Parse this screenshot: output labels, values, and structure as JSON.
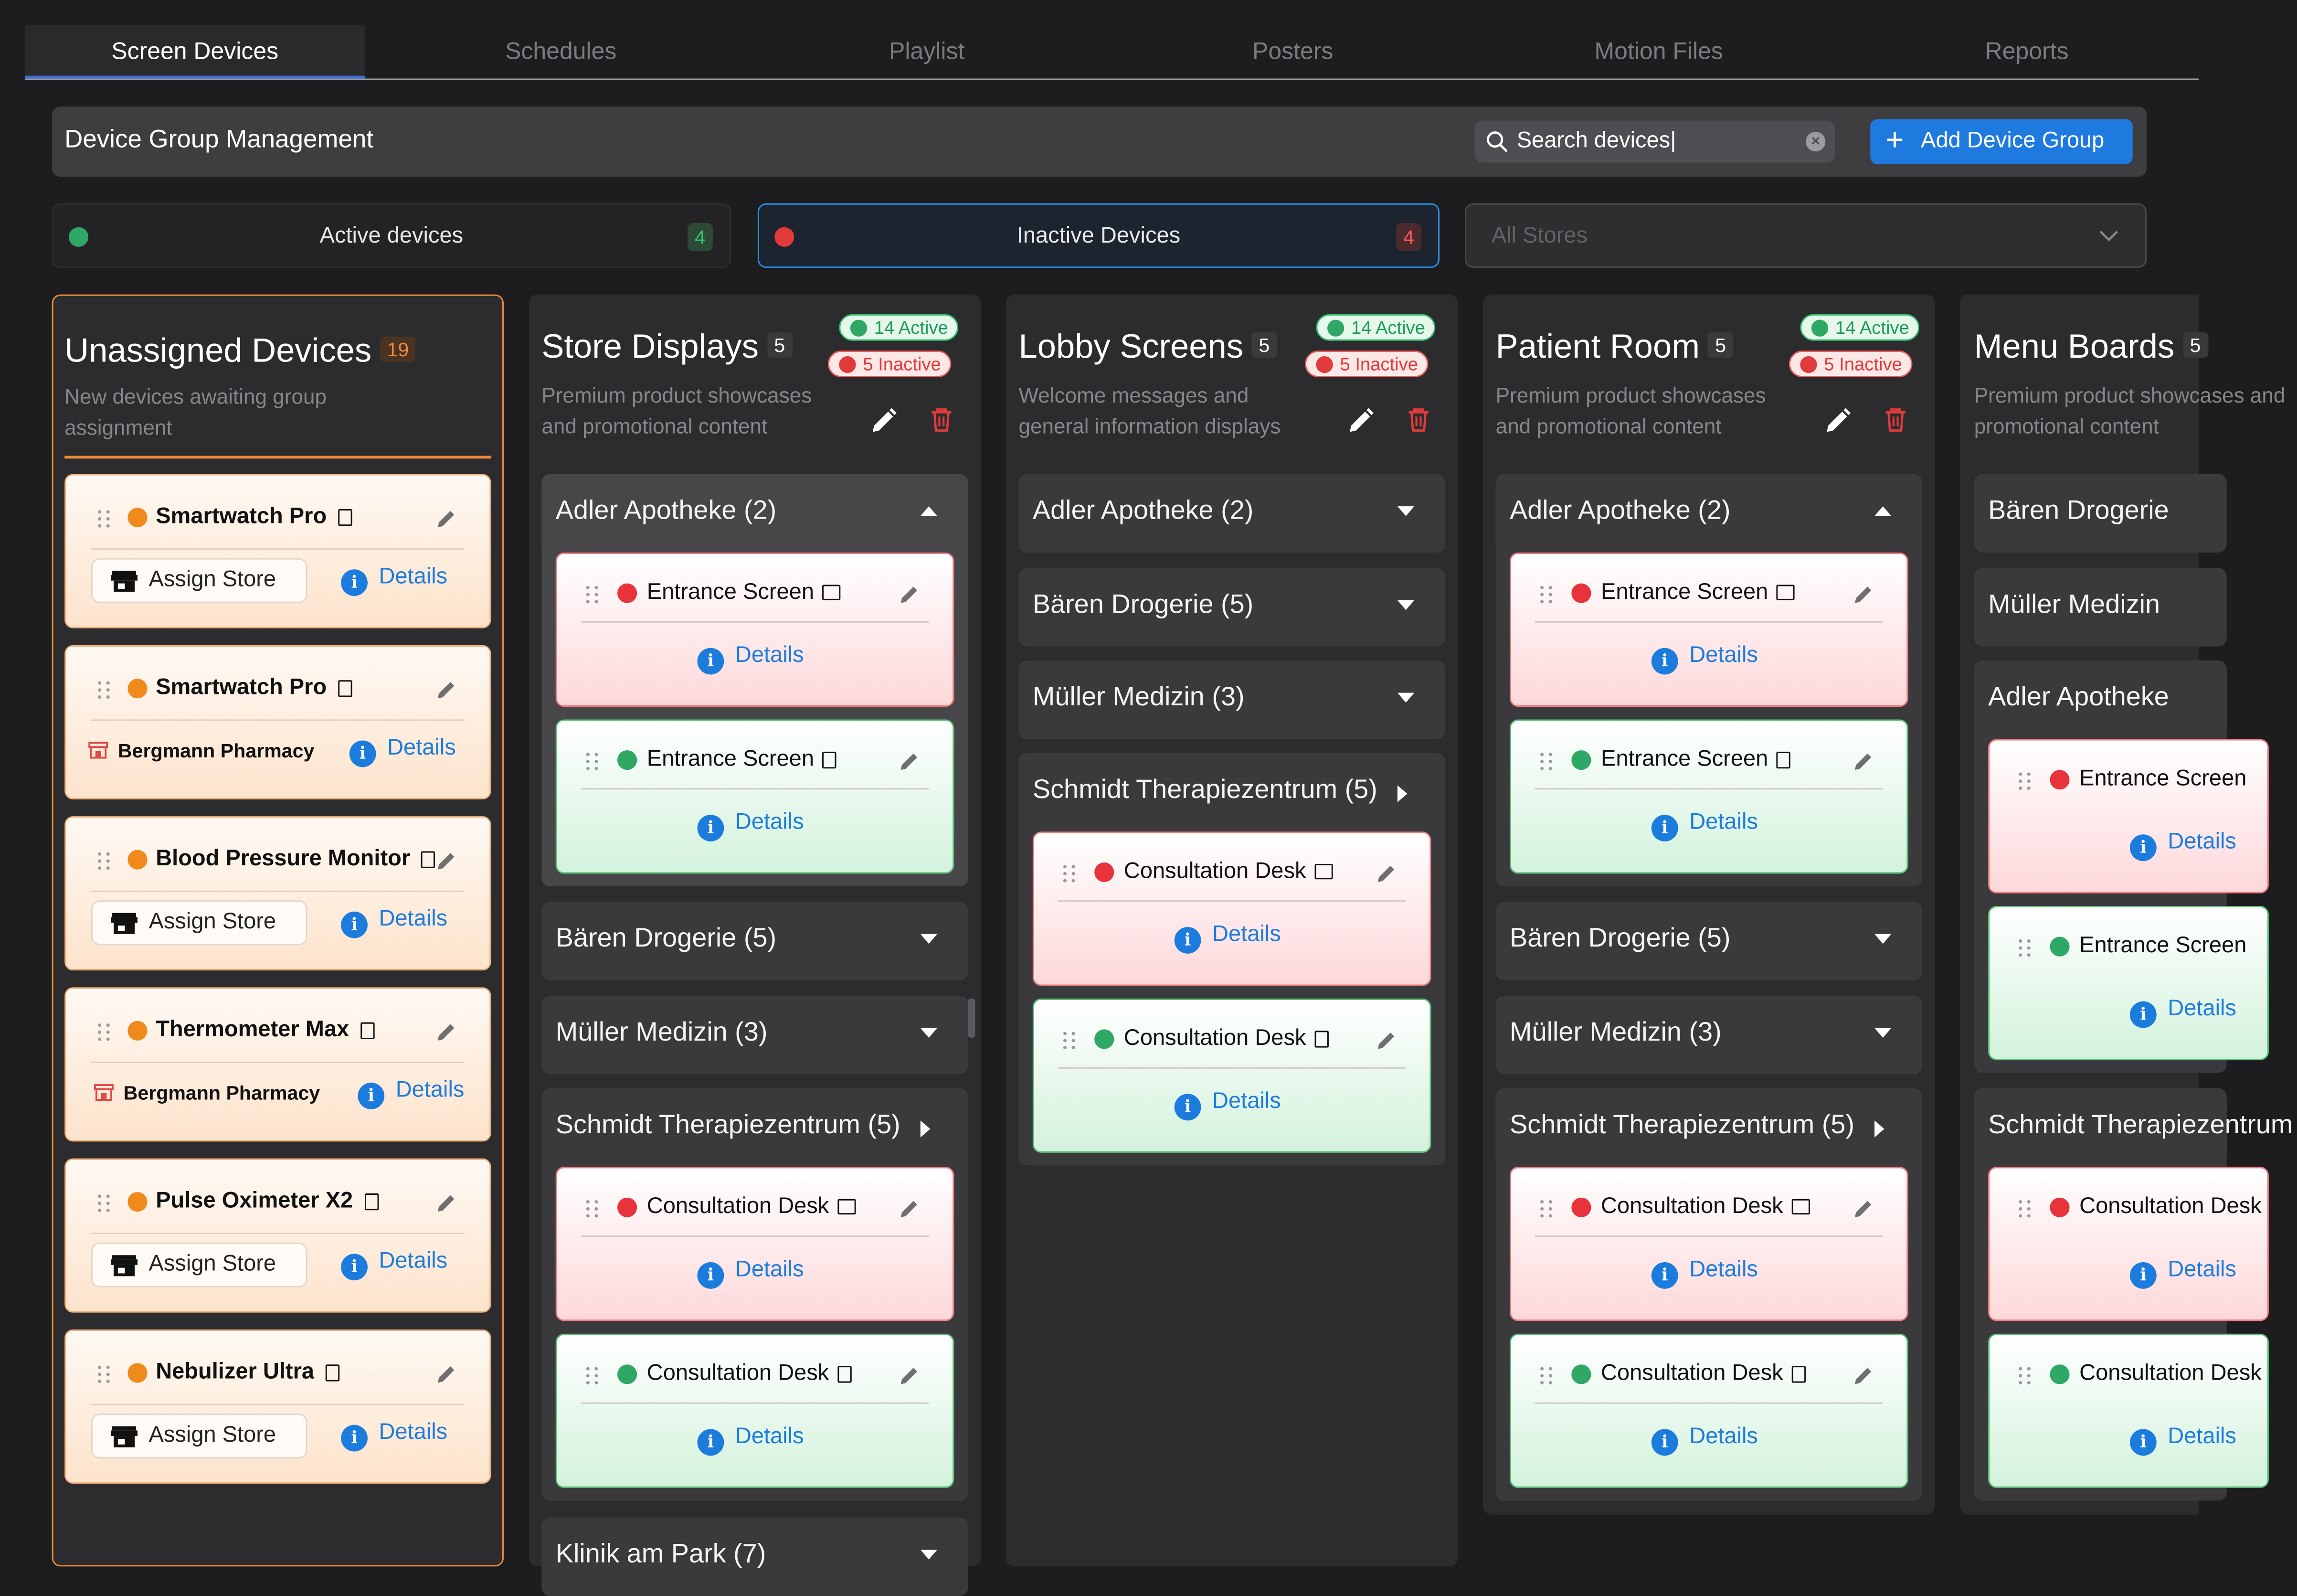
{
  "tabs": [
    "Screen Devices",
    "Schedules",
    "Playlist",
    "Posters",
    "Motion Files",
    "Reports"
  ],
  "header": {
    "title": "Device Group Management",
    "search_value": "Search devices|",
    "add_label": "Add Device Group"
  },
  "filters": {
    "active": {
      "label": "Active devices",
      "count": "4"
    },
    "inactive": {
      "label": "Inactive Devices",
      "count": "4"
    },
    "stores_placeholder": "All Stores"
  },
  "colors": {
    "accent": "#1f7ae0",
    "active": "#2fa865",
    "inactive": "#e03a3a",
    "unassigned": "#f08a1c"
  },
  "unassigned": {
    "title": "Unassigned Devices",
    "count": "19",
    "desc": "New devices awaiting group assignment",
    "assign_label": "Assign Store",
    "details_label": "Details",
    "devices": [
      {
        "name": "Smartwatch Pro",
        "store": ""
      },
      {
        "name": "Smartwatch Pro",
        "store": "Bergmann Pharmacy"
      },
      {
        "name": "Blood Pressure Monitor",
        "store": ""
      },
      {
        "name": "Thermometer Max",
        "store": "Bergmann Pharmacy"
      },
      {
        "name": "Pulse Oximeter X2",
        "store": ""
      },
      {
        "name": "Nebulizer Ultra",
        "store": ""
      }
    ]
  },
  "columns": [
    {
      "title": "Store Displays",
      "count": "5",
      "active": "14 Active",
      "inactive": "5 Inactive",
      "desc": "Premium product showcases and promotional content",
      "groups": [
        "Adler Apotheke (2)",
        "Bären Drogerie (5)",
        "Müller Medizin (3)",
        "Schmidt Therapiezentrum (5)",
        "Klinik am Park (7)"
      ],
      "open_group_devices": [
        "Entrance Screen",
        "Entrance Screen"
      ],
      "schmidt_devices": [
        "Consultation Desk",
        "Consultation Desk"
      ]
    },
    {
      "title": "Lobby Screens",
      "count": "5",
      "active": "14 Active",
      "inactive": "5 Inactive",
      "desc": "Welcome messages and general information displays",
      "groups": [
        "Adler Apotheke (2)",
        "Bären Drogerie (5)",
        "Müller Medizin (3)",
        "Schmidt Therapiezentrum (5)"
      ],
      "schmidt_devices": [
        "Consultation Desk",
        "Consultation Desk"
      ]
    },
    {
      "title": "Patient Room",
      "count": "5",
      "active": "14 Active",
      "inactive": "5 Inactive",
      "desc": "Premium product showcases and promotional content",
      "groups": [
        "Adler Apotheke (2)",
        "Bären Drogerie (5)",
        "Müller Medizin (3)",
        "Schmidt Therapiezentrum (5)"
      ],
      "open_group_devices": [
        "Entrance Screen",
        "Entrance Screen"
      ],
      "schmidt_devices": [
        "Consultation Desk",
        "Consultation Desk"
      ]
    },
    {
      "title": "Menu Boards",
      "count": "5",
      "desc": "Premium product showcases and promotional content",
      "groups": [
        "Bären Drogerie",
        "Müller Medizin",
        "Adler Apotheke",
        "Schmidt Therapiezentrum"
      ],
      "adler_devices": [
        "Entrance Screen",
        "Entrance Screen"
      ],
      "schmidt_devices": [
        "Consultation Desk",
        "Consultation Desk"
      ]
    }
  ],
  "details_label": "Details"
}
